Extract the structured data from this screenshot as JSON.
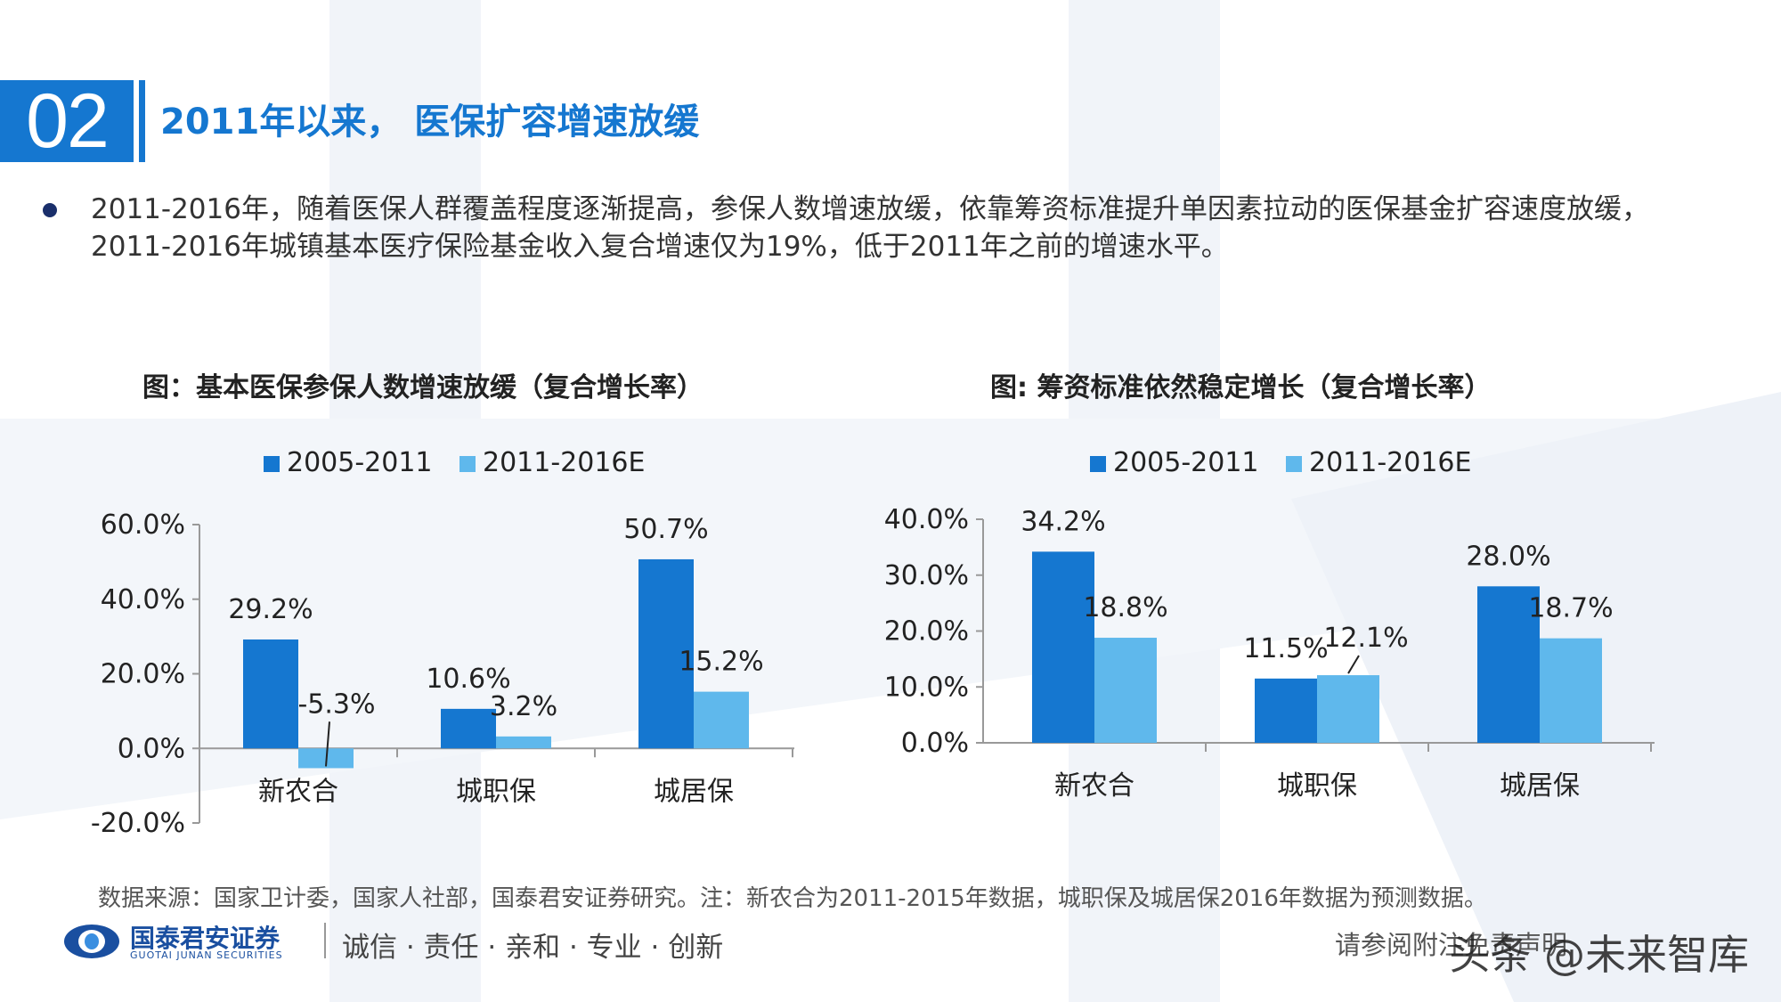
{
  "section": {
    "number": "02",
    "title": "2011年以来， 医保扩容增速放缓"
  },
  "paragraph": "2011-2016年，随着医保人群覆盖程度逐渐提高，参保人数增速放缓，依靠筹资标准提升单因素拉动的医保基金扩容速度放缓，2011-2016年城镇基本医疗保险基金收入复合增速仅为19%，低于2011年之前的增速水平。",
  "colors": {
    "series_a": "#1577d0",
    "series_b": "#5fb8ec",
    "brand": "#1577d0"
  },
  "chart_data": [
    {
      "type": "bar",
      "title": "图：基本医保参保人数增速放缓（复合增长率）",
      "categories": [
        "新农合",
        "城职保",
        "城居保"
      ],
      "series": [
        {
          "name": "2005-2011",
          "values": [
            29.2,
            10.6,
            50.7
          ],
          "labels": [
            "29.2%",
            "10.6%",
            "50.7%"
          ]
        },
        {
          "name": "2011-2016E",
          "values": [
            -5.3,
            3.2,
            15.2
          ],
          "labels": [
            "-5.3%",
            "3.2%",
            "15.2%"
          ]
        }
      ],
      "ylim": [
        -20,
        60
      ],
      "yticks": [
        60,
        40,
        20,
        0,
        -20
      ],
      "ytick_labels": [
        "60.0%",
        "40.0%",
        "20.0%",
        "0.0%",
        "-20.0%"
      ],
      "legend": "top"
    },
    {
      "type": "bar",
      "title": "图: 筹资标准依然稳定增长（复合增长率）",
      "categories": [
        "新农合",
        "城职保",
        "城居保"
      ],
      "series": [
        {
          "name": "2005-2011",
          "values": [
            34.2,
            11.5,
            28.0
          ],
          "labels": [
            "34.2%",
            "11.5%",
            "28.0%"
          ]
        },
        {
          "name": "2011-2016E",
          "values": [
            18.8,
            12.1,
            18.7
          ],
          "labels": [
            "18.8%",
            "12.1%",
            "18.7%"
          ]
        }
      ],
      "ylim": [
        0,
        40
      ],
      "yticks": [
        40,
        30,
        20,
        10,
        0
      ],
      "ytick_labels": [
        "40.0%",
        "30.0%",
        "20.0%",
        "10.0%",
        "0.0%"
      ],
      "legend": "top"
    }
  ],
  "source": "数据来源：国家卫计委，国家人社部，国泰君安证券研究。注：新农合为2011-2015年数据，城职保及城居保2016年数据为预测数据。",
  "footer": {
    "company": "国泰君安证券",
    "company_en": "GUOTAI JUNAN SECURITIES",
    "slogan": "诚信 · 责任 · 亲和 · 专业 · 创新",
    "disclaimer": "请参阅附注免责声明",
    "watermark": "头条 @未来智库"
  }
}
